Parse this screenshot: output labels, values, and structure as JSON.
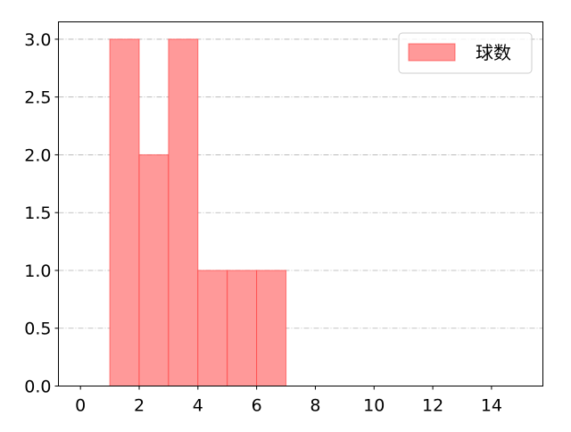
{
  "chart_data": {
    "type": "bar",
    "histogram": true,
    "bins": [
      {
        "x0": 1,
        "x1": 2,
        "value": 3
      },
      {
        "x0": 2,
        "x1": 3,
        "value": 2
      },
      {
        "x0": 3,
        "x1": 4,
        "value": 3
      },
      {
        "x0": 4,
        "x1": 5,
        "value": 1
      },
      {
        "x0": 5,
        "x1": 6,
        "value": 1
      },
      {
        "x0": 6,
        "x1": 7,
        "value": 1
      }
    ],
    "series": [
      {
        "name": "球数"
      }
    ],
    "title": "",
    "xlabel": "",
    "ylabel": "",
    "xlim": [
      -0.75,
      15.75
    ],
    "ylim": [
      0,
      3.15
    ],
    "xticks": [
      0,
      2,
      4,
      6,
      8,
      10,
      12,
      14
    ],
    "yticks": [
      "0.0",
      "0.5",
      "1.0",
      "1.5",
      "2.0",
      "2.5",
      "3.0"
    ],
    "grid": "y-dashdot",
    "legend": "top-right",
    "colors": {
      "fill": "#ff9999",
      "edge": "#ff3333",
      "grid": "#b0b0b0"
    }
  }
}
